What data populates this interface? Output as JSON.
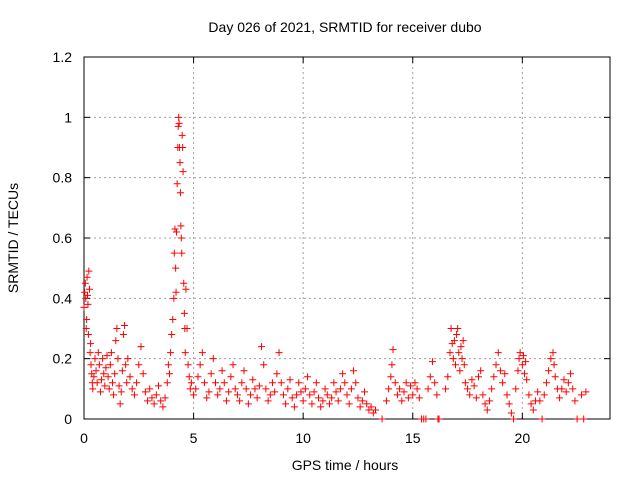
{
  "chart_data": {
    "type": "scatter",
    "title": "Day 026 of 2021, SRMTID for receiver dubo",
    "xlabel": "GPS time / hours",
    "ylabel": "SRMTID / TECUs",
    "xlim": [
      0,
      24
    ],
    "ylim": [
      0,
      1.2
    ],
    "x_ticks": [
      0,
      5,
      10,
      15,
      20
    ],
    "x_tick_labels": [
      "0",
      "5",
      "10",
      "15",
      "20"
    ],
    "y_ticks": [
      0,
      0.2,
      0.4,
      0.6,
      0.8,
      1.0,
      1.2
    ],
    "y_tick_labels": [
      "0",
      "0.2",
      "0.4",
      "0.6",
      "0.8",
      "1",
      "1.2"
    ],
    "grid": true,
    "marker": "+",
    "series": [
      {
        "name": "SRMTID",
        "color": "#ff0000",
        "points": [
          [
            0.0,
            0.37
          ],
          [
            0.03,
            0.42
          ],
          [
            0.06,
            0.45
          ],
          [
            0.08,
            0.4
          ],
          [
            0.1,
            0.3
          ],
          [
            0.12,
            0.33
          ],
          [
            0.14,
            0.47
          ],
          [
            0.16,
            0.41
          ],
          [
            0.18,
            0.38
          ],
          [
            0.2,
            0.28
          ],
          [
            0.22,
            0.49
          ],
          [
            0.25,
            0.43
          ],
          [
            0.28,
            0.22
          ],
          [
            0.3,
            0.25
          ],
          [
            0.32,
            0.18
          ],
          [
            0.35,
            0.15
          ],
          [
            0.38,
            0.12
          ],
          [
            0.4,
            0.1
          ],
          [
            0.45,
            0.14
          ],
          [
            0.5,
            0.2
          ],
          [
            0.55,
            0.16
          ],
          [
            0.6,
            0.12
          ],
          [
            0.65,
            0.22
          ],
          [
            0.7,
            0.18
          ],
          [
            0.75,
            0.09
          ],
          [
            0.8,
            0.13
          ],
          [
            0.85,
            0.2
          ],
          [
            0.9,
            0.15
          ],
          [
            0.95,
            0.11
          ],
          [
            1.0,
            0.17
          ],
          [
            1.05,
            0.21
          ],
          [
            1.1,
            0.14
          ],
          [
            1.15,
            0.1
          ],
          [
            1.2,
            0.18
          ],
          [
            1.25,
            0.22
          ],
          [
            1.3,
            0.12
          ],
          [
            1.35,
            0.08
          ],
          [
            1.4,
            0.15
          ],
          [
            1.45,
            0.26
          ],
          [
            1.5,
            0.3
          ],
          [
            1.55,
            0.2
          ],
          [
            1.6,
            0.11
          ],
          [
            1.65,
            0.05
          ],
          [
            1.7,
            0.09
          ],
          [
            1.75,
            0.16
          ],
          [
            1.8,
            0.28
          ],
          [
            1.85,
            0.31
          ],
          [
            1.9,
            0.18
          ],
          [
            1.95,
            0.12
          ],
          [
            2.0,
            0.2
          ],
          [
            2.1,
            0.14
          ],
          [
            2.2,
            0.1
          ],
          [
            2.3,
            0.08
          ],
          [
            2.4,
            0.12
          ],
          [
            2.5,
            0.18
          ],
          [
            2.6,
            0.24
          ],
          [
            2.7,
            0.15
          ],
          [
            2.8,
            0.09
          ],
          [
            2.9,
            0.06
          ],
          [
            3.0,
            0.1
          ],
          [
            3.1,
            0.07
          ],
          [
            3.2,
            0.05
          ],
          [
            3.3,
            0.08
          ],
          [
            3.4,
            0.11
          ],
          [
            3.5,
            0.06
          ],
          [
            3.6,
            0.04
          ],
          [
            3.7,
            0.07
          ],
          [
            3.8,
            0.12
          ],
          [
            3.85,
            0.18
          ],
          [
            3.9,
            0.15
          ],
          [
            3.95,
            0.22
          ],
          [
            4.0,
            0.28
          ],
          [
            4.05,
            0.33
          ],
          [
            4.1,
            0.4
          ],
          [
            4.12,
            0.55
          ],
          [
            4.15,
            0.63
          ],
          [
            4.18,
            0.5
          ],
          [
            4.2,
            0.42
          ],
          [
            4.22,
            0.62
          ],
          [
            4.25,
            0.78
          ],
          [
            4.28,
            0.9
          ],
          [
            4.3,
            0.97
          ],
          [
            4.32,
            1.0
          ],
          [
            4.34,
            0.98
          ],
          [
            4.36,
            0.9
          ],
          [
            4.38,
            0.85
          ],
          [
            4.4,
            0.75
          ],
          [
            4.42,
            0.64
          ],
          [
            4.44,
            0.6
          ],
          [
            4.46,
            0.55
          ],
          [
            4.48,
            0.94
          ],
          [
            4.5,
            0.9
          ],
          [
            4.52,
            0.82
          ],
          [
            4.55,
            0.45
          ],
          [
            4.58,
            0.35
          ],
          [
            4.6,
            0.3
          ],
          [
            4.62,
            0.22
          ],
          [
            4.65,
            0.43
          ],
          [
            4.7,
            0.3
          ],
          [
            4.75,
            0.18
          ],
          [
            4.8,
            0.14
          ],
          [
            4.85,
            0.1
          ],
          [
            4.9,
            0.12
          ],
          [
            5.0,
            0.08
          ],
          [
            5.1,
            0.1
          ],
          [
            5.2,
            0.14
          ],
          [
            5.3,
            0.18
          ],
          [
            5.4,
            0.22
          ],
          [
            5.5,
            0.12
          ],
          [
            5.6,
            0.07
          ],
          [
            5.7,
            0.09
          ],
          [
            5.8,
            0.15
          ],
          [
            5.9,
            0.2
          ],
          [
            6.0,
            0.12
          ],
          [
            6.1,
            0.08
          ],
          [
            6.2,
            0.1
          ],
          [
            6.3,
            0.16
          ],
          [
            6.4,
            0.12
          ],
          [
            6.5,
            0.06
          ],
          [
            6.6,
            0.09
          ],
          [
            6.7,
            0.14
          ],
          [
            6.8,
            0.18
          ],
          [
            6.9,
            0.1
          ],
          [
            7.0,
            0.08
          ],
          [
            7.1,
            0.06
          ],
          [
            7.2,
            0.12
          ],
          [
            7.3,
            0.16
          ],
          [
            7.4,
            0.1
          ],
          [
            7.5,
            0.05
          ],
          [
            7.6,
            0.08
          ],
          [
            7.7,
            0.13
          ],
          [
            7.8,
            0.1
          ],
          [
            7.9,
            0.07
          ],
          [
            8.0,
            0.11
          ],
          [
            8.1,
            0.24
          ],
          [
            8.2,
            0.18
          ],
          [
            8.3,
            0.1
          ],
          [
            8.4,
            0.06
          ],
          [
            8.5,
            0.08
          ],
          [
            8.6,
            0.12
          ],
          [
            8.7,
            0.09
          ],
          [
            8.8,
            0.15
          ],
          [
            8.9,
            0.22
          ],
          [
            9.0,
            0.12
          ],
          [
            9.1,
            0.08
          ],
          [
            9.2,
            0.05
          ],
          [
            9.3,
            0.1
          ],
          [
            9.4,
            0.13
          ],
          [
            9.5,
            0.07
          ],
          [
            9.6,
            0.04
          ],
          [
            9.7,
            0.08
          ],
          [
            9.8,
            0.12
          ],
          [
            9.9,
            0.09
          ],
          [
            10.0,
            0.06
          ],
          [
            10.1,
            0.1
          ],
          [
            10.2,
            0.14
          ],
          [
            10.3,
            0.08
          ],
          [
            10.4,
            0.05
          ],
          [
            10.5,
            0.09
          ],
          [
            10.6,
            0.12
          ],
          [
            10.7,
            0.07
          ],
          [
            10.8,
            0.04
          ],
          [
            10.9,
            0.06
          ],
          [
            11.0,
            0.1
          ],
          [
            11.1,
            0.08
          ],
          [
            11.2,
            0.05
          ],
          [
            11.3,
            0.07
          ],
          [
            11.4,
            0.12
          ],
          [
            11.5,
            0.09
          ],
          [
            11.6,
            0.06
          ],
          [
            11.7,
            0.1
          ],
          [
            11.8,
            0.15
          ],
          [
            11.9,
            0.12
          ],
          [
            12.0,
            0.08
          ],
          [
            12.1,
            0.05
          ],
          [
            12.2,
            0.1
          ],
          [
            12.3,
            0.16
          ],
          [
            12.4,
            0.12
          ],
          [
            12.5,
            0.07
          ],
          [
            12.6,
            0.04
          ],
          [
            12.7,
            0.06
          ],
          [
            12.8,
            0.09
          ],
          [
            12.9,
            0.05
          ],
          [
            13.0,
            0.03
          ],
          [
            13.1,
            0.04
          ],
          [
            13.2,
            0.02
          ],
          [
            13.3,
            0.03
          ],
          [
            13.6,
            0.0
          ],
          [
            13.8,
            0.06
          ],
          [
            13.9,
            0.1
          ],
          [
            14.0,
            0.14
          ],
          [
            14.05,
            0.18
          ],
          [
            14.1,
            0.23
          ],
          [
            14.2,
            0.12
          ],
          [
            14.3,
            0.08
          ],
          [
            14.4,
            0.1
          ],
          [
            14.5,
            0.06
          ],
          [
            14.6,
            0.09
          ],
          [
            14.7,
            0.12
          ],
          [
            14.8,
            0.07
          ],
          [
            14.9,
            0.11
          ],
          [
            15.0,
            0.08
          ],
          [
            15.1,
            0.12
          ],
          [
            15.2,
            0.1
          ],
          [
            15.3,
            0.07
          ],
          [
            15.4,
            0.0
          ],
          [
            15.5,
            0.0
          ],
          [
            15.6,
            0.0
          ],
          [
            15.7,
            0.1
          ],
          [
            15.8,
            0.14
          ],
          [
            15.9,
            0.19
          ],
          [
            16.0,
            0.12
          ],
          [
            16.1,
            0.08
          ],
          [
            16.15,
            0.0
          ],
          [
            16.2,
            0.0
          ],
          [
            16.5,
            0.1
          ],
          [
            16.6,
            0.14
          ],
          [
            16.7,
            0.22
          ],
          [
            16.75,
            0.3
          ],
          [
            16.8,
            0.25
          ],
          [
            16.85,
            0.2
          ],
          [
            16.9,
            0.26
          ],
          [
            16.95,
            0.18
          ],
          [
            17.0,
            0.28
          ],
          [
            17.05,
            0.3
          ],
          [
            17.1,
            0.22
          ],
          [
            17.15,
            0.16
          ],
          [
            17.2,
            0.24
          ],
          [
            17.25,
            0.2
          ],
          [
            17.3,
            0.26
          ],
          [
            17.35,
            0.18
          ],
          [
            17.4,
            0.12
          ],
          [
            17.5,
            0.1
          ],
          [
            17.6,
            0.08
          ],
          [
            17.7,
            0.13
          ],
          [
            17.8,
            0.11
          ],
          [
            17.9,
            0.07
          ],
          [
            18.0,
            0.14
          ],
          [
            18.1,
            0.16
          ],
          [
            18.2,
            0.08
          ],
          [
            18.3,
            0.05
          ],
          [
            18.4,
            0.03
          ],
          [
            18.5,
            0.06
          ],
          [
            18.6,
            0.1
          ],
          [
            18.7,
            0.14
          ],
          [
            18.8,
            0.18
          ],
          [
            18.9,
            0.22
          ],
          [
            19.0,
            0.16
          ],
          [
            19.1,
            0.12
          ],
          [
            19.2,
            0.15
          ],
          [
            19.3,
            0.08
          ],
          [
            19.4,
            0.05
          ],
          [
            19.5,
            0.02
          ],
          [
            19.6,
            0.0
          ],
          [
            19.7,
            0.1
          ],
          [
            19.8,
            0.16
          ],
          [
            19.85,
            0.2
          ],
          [
            19.9,
            0.22
          ],
          [
            20.0,
            0.18
          ],
          [
            20.05,
            0.21
          ],
          [
            20.1,
            0.15
          ],
          [
            20.15,
            0.19
          ],
          [
            20.2,
            0.13
          ],
          [
            20.3,
            0.08
          ],
          [
            20.4,
            0.05
          ],
          [
            20.5,
            0.03
          ],
          [
            20.6,
            0.06
          ],
          [
            20.7,
            0.09
          ],
          [
            20.8,
            0.06
          ],
          [
            20.9,
            0.0
          ],
          [
            21.0,
            0.08
          ],
          [
            21.1,
            0.12
          ],
          [
            21.2,
            0.16
          ],
          [
            21.3,
            0.2
          ],
          [
            21.4,
            0.22
          ],
          [
            21.45,
            0.18
          ],
          [
            21.5,
            0.14
          ],
          [
            21.6,
            0.1
          ],
          [
            21.7,
            0.07
          ],
          [
            21.8,
            0.1
          ],
          [
            21.9,
            0.13
          ],
          [
            22.0,
            0.09
          ],
          [
            22.1,
            0.12
          ],
          [
            22.2,
            0.15
          ],
          [
            22.3,
            0.1
          ],
          [
            22.4,
            0.06
          ],
          [
            22.5,
            0.0
          ],
          [
            22.7,
            0.08
          ],
          [
            22.8,
            0.0
          ],
          [
            22.9,
            0.09
          ]
        ]
      }
    ]
  }
}
